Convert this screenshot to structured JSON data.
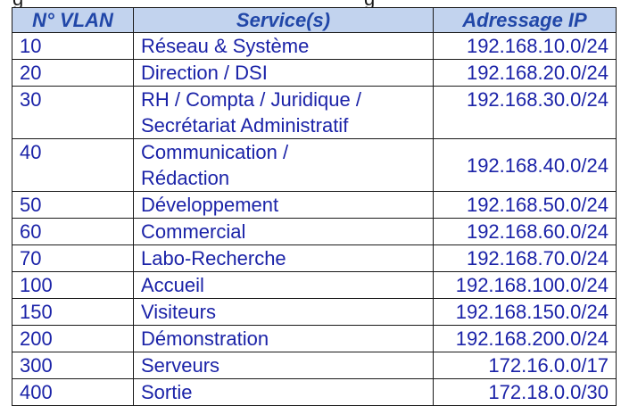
{
  "table": {
    "headers": [
      "N° VLAN",
      "Service(s)",
      "Adressage IP"
    ],
    "rows": [
      {
        "vlan": "10",
        "service": "Réseau & Système",
        "ip": "192.168.10.0/24"
      },
      {
        "vlan": "20",
        "service": "Direction / DSI",
        "ip": "192.168.20.0/24"
      },
      {
        "vlan": "30",
        "service_line1": "RH / Compta / Juridique /",
        "service_line2": "Secrétariat Administratif",
        "ip": "192.168.30.0/24"
      },
      {
        "vlan": "40",
        "service_line1": "Communication /",
        "service_line2": "Rédaction",
        "ip": "192.168.40.0/24"
      },
      {
        "vlan": "50",
        "service": "Développement",
        "ip": "192.168.50.0/24"
      },
      {
        "vlan": "60",
        "service": "Commercial",
        "ip": "192.168.60.0/24"
      },
      {
        "vlan": "70",
        "service": "Labo-Recherche",
        "ip": "192.168.70.0/24"
      },
      {
        "vlan": "100",
        "service": "Accueil",
        "ip": "192.168.100.0/24"
      },
      {
        "vlan": "150",
        "service": "Visiteurs",
        "ip": "192.168.150.0/24"
      },
      {
        "vlan": "200",
        "service": "Démonstration",
        "ip": "192.168.200.0/24"
      },
      {
        "vlan": "300",
        "service": "Serveurs",
        "ip": "172.16.0.0/17"
      },
      {
        "vlan": "400",
        "service": "Sortie",
        "ip": "172.18.0.0/30"
      }
    ]
  },
  "colors": {
    "header_background": "#c2d3ee",
    "header_text": "#2147a8",
    "cell_text": "#1b23a8",
    "border": "#1a1a1a"
  }
}
